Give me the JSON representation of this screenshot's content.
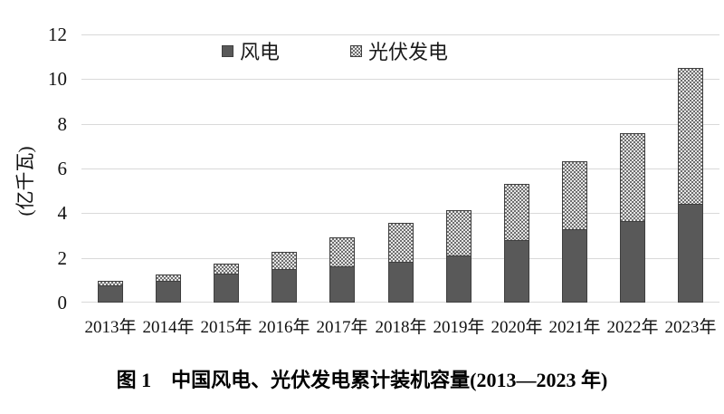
{
  "figure": {
    "caption": "图 1　中国风电、光伏发电累计装机容量(2013—2023 年)"
  },
  "chart_data": {
    "type": "bar",
    "stacked": true,
    "title": "",
    "categories": [
      "2013年",
      "2014年",
      "2015年",
      "2016年",
      "2017年",
      "2018年",
      "2019年",
      "2020年",
      "2021年",
      "2022年",
      "2023年"
    ],
    "series": [
      {
        "name": "风电",
        "values": [
          0.77,
          0.96,
          1.29,
          1.49,
          1.64,
          1.84,
          2.1,
          2.81,
          3.28,
          3.65,
          4.41
        ],
        "pattern": "solid",
        "color": "#595959",
        "border_color": "#3f3f3f"
      },
      {
        "name": "光伏发电",
        "values": [
          0.19,
          0.28,
          0.43,
          0.77,
          1.3,
          1.74,
          2.04,
          2.53,
          3.06,
          3.93,
          6.09
        ],
        "pattern": "checker-dots",
        "color": "#e6e6e6",
        "dot_color": "#6e6e6e",
        "border_color": "#3f3f3f"
      }
    ],
    "totals": [
      0.96,
      1.24,
      1.72,
      2.26,
      2.94,
      3.58,
      4.14,
      5.34,
      6.34,
      7.58,
      10.5
    ],
    "xlabel": "",
    "ylabel": "(亿千瓦)",
    "ylim": [
      0,
      12
    ],
    "yticks": [
      0,
      2,
      4,
      6,
      8,
      10,
      12
    ],
    "grid": "horizontal",
    "gridline_color": "#d9d9d9",
    "legend_position": "top-center",
    "background": "#ffffff"
  }
}
